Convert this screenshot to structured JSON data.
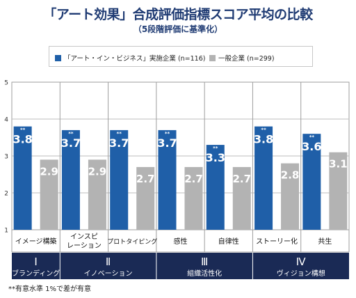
{
  "title": "「アート効果」合成評価指標スコア平均の比較",
  "subtitle": "（5段階評価に基準化）",
  "footnote": "**有意水準 1%で差が有意",
  "colors": {
    "series1": "#1f5fa8",
    "series2": "#b3b3b3",
    "navy": "#1a2a55",
    "grid": "#bdbdbd"
  },
  "chart_data": {
    "type": "bar",
    "ylim": [
      1,
      5
    ],
    "yticks": [
      1,
      2,
      3,
      4,
      5
    ],
    "grid": true,
    "legend_position": "top",
    "categories": [
      "イメージ構築",
      "インスピ\nレーション",
      "プロトタイピング",
      "感性",
      "自律性",
      "ストーリー化",
      "共生"
    ],
    "series": [
      {
        "name": "「アート・イン・ビジネス」実施企業 (n=116)",
        "values": [
          3.8,
          3.7,
          3.7,
          3.7,
          3.3,
          3.8,
          3.6
        ],
        "labels": [
          "3.8",
          "3.7",
          "3.7",
          "3.7",
          "3.3",
          "3.8",
          "3.6"
        ],
        "marks": [
          "**",
          "**",
          "**",
          "**",
          "**",
          "**",
          "**"
        ]
      },
      {
        "name": "一般企業 (n=299)",
        "values": [
          2.9,
          2.9,
          2.7,
          2.7,
          2.7,
          2.8,
          3.1
        ],
        "labels": [
          "2.9",
          "2.9",
          "2.7",
          "2.7",
          "2.7",
          "2.8",
          "3.1"
        ]
      }
    ],
    "groups": [
      {
        "numeral": "Ⅰ",
        "label": "ブランディング",
        "span": [
          0,
          0
        ]
      },
      {
        "numeral": "Ⅱ",
        "label": "イノベーション",
        "span": [
          1,
          2
        ]
      },
      {
        "numeral": "Ⅲ",
        "label": "組織活性化",
        "span": [
          3,
          4
        ]
      },
      {
        "numeral": "Ⅳ",
        "label": "ヴィジョン構想",
        "span": [
          5,
          6
        ]
      }
    ]
  }
}
